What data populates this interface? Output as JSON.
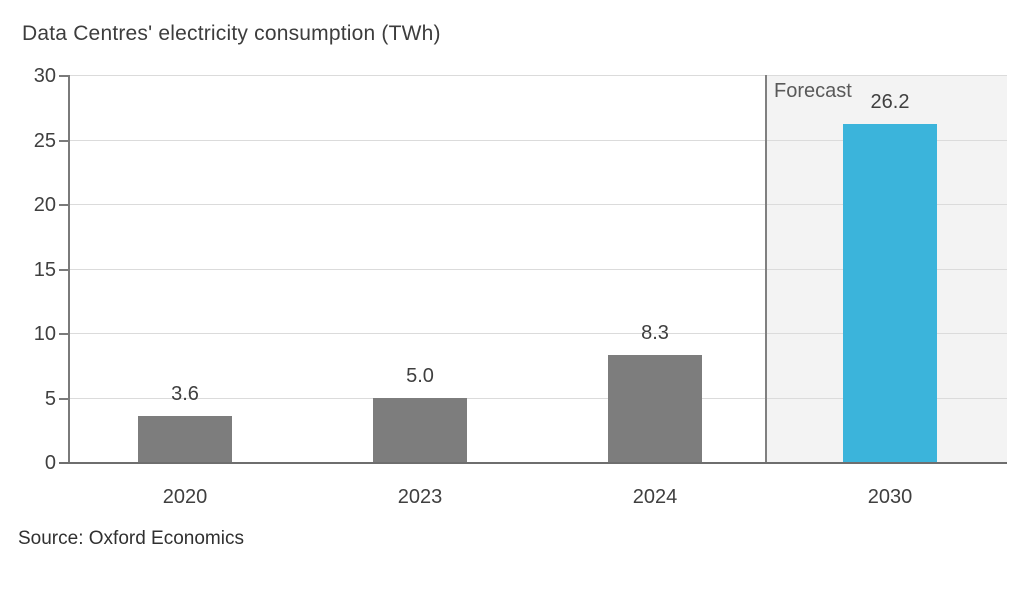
{
  "title": "Data Centres' electricity consumption (TWh)",
  "source": "Source: Oxford Economics",
  "chart_data": {
    "type": "bar",
    "title": "Data Centres' electricity consumption (TWh)",
    "categories": [
      "2020",
      "2023",
      "2024",
      "2030"
    ],
    "values": [
      3.6,
      5.0,
      8.3,
      26.2
    ],
    "value_labels": [
      "3.6",
      "5.0",
      "8.3",
      "26.2"
    ],
    "bar_colors": [
      "#7d7d7d",
      "#7d7d7d",
      "#7d7d7d",
      "#3bb4db"
    ],
    "xlabel": "",
    "ylabel": "",
    "ylim": [
      0,
      30
    ],
    "yticks": [
      0,
      5,
      10,
      15,
      20,
      25,
      30
    ],
    "grid": "horizontal",
    "legend": "none",
    "forecast": {
      "label": "Forecast",
      "start_category_index": 3,
      "background": "#f3f3f3"
    },
    "source": "Source: Oxford Economics"
  },
  "colors": {
    "actual_bar": "#7d7d7d",
    "forecast_bar": "#3bb4db",
    "forecast_background": "#f3f3f3",
    "gridline": "#dbdbdb",
    "axis": "#7a7a7a",
    "text": "#3f3f3f"
  }
}
